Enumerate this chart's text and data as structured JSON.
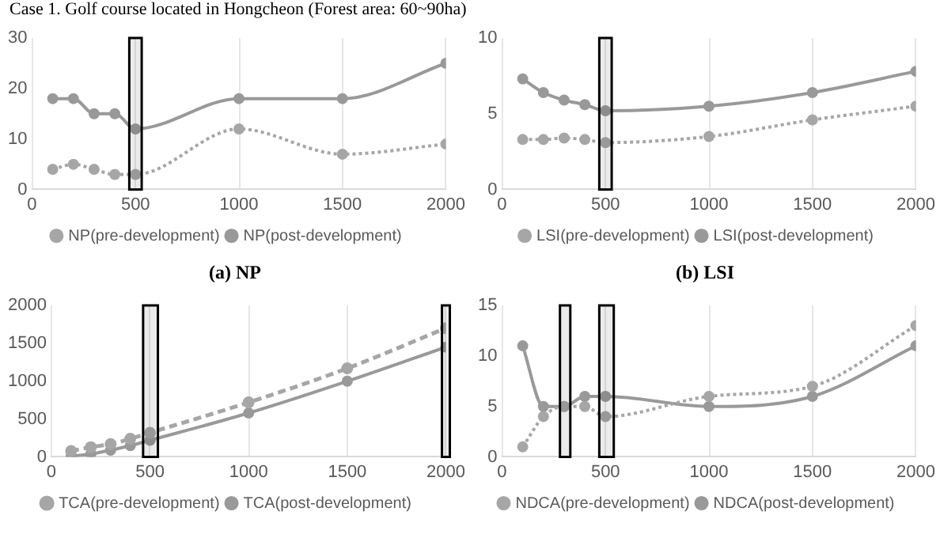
{
  "chart_data": [
    {
      "type": "line",
      "title": "Case 1. Golf course located in Hongcheon (Forest area: 60~90ha)",
      "annotations": [
        "(a) NP"
      ],
      "x": [
        100,
        200,
        300,
        400,
        500,
        1000,
        1500,
        2000
      ],
      "series": [
        {
          "name": "NP(pre-development)",
          "color": "#a6a6a6",
          "line_style": "dotted",
          "values": [
            4,
            5,
            4,
            3,
            3,
            12,
            7,
            9
          ]
        },
        {
          "name": "NP(post-development)",
          "color": "#999999",
          "line_style": "solid",
          "values": [
            18,
            18,
            15,
            15,
            12,
            18,
            18,
            25
          ]
        }
      ],
      "xlim": [
        0,
        2000
      ],
      "xticks": [
        0,
        500,
        1000,
        1500,
        2000
      ],
      "ylim": [
        0,
        30
      ],
      "yticks": [
        0,
        10,
        20,
        30
      ],
      "grid": "x",
      "legend": "bottom",
      "marker": "circle",
      "bands": [
        {
          "axis": "x",
          "from": 470,
          "to": 530,
          "color": "#000000"
        }
      ]
    },
    {
      "type": "line",
      "annotations": [
        "(b) LSI"
      ],
      "x": [
        100,
        200,
        300,
        400,
        500,
        1000,
        1500,
        2000
      ],
      "series": [
        {
          "name": "LSI(pre-development)",
          "color": "#a6a6a6",
          "line_style": "dotted",
          "values": [
            3.3,
            3.3,
            3.4,
            3.3,
            3.1,
            3.5,
            4.6,
            5.5
          ]
        },
        {
          "name": "LSI(post-development)",
          "color": "#999999",
          "line_style": "solid",
          "values": [
            7.3,
            6.4,
            5.9,
            5.6,
            5.2,
            5.5,
            6.4,
            7.8
          ]
        }
      ],
      "xlim": [
        0,
        2000
      ],
      "xticks": [
        0,
        500,
        1000,
        1500,
        2000
      ],
      "ylim": [
        0,
        10
      ],
      "yticks": [
        0,
        5,
        10
      ],
      "grid": "x",
      "legend": "bottom",
      "marker": "circle",
      "bands": [
        {
          "axis": "x",
          "from": 470,
          "to": 530,
          "color": "#000000"
        }
      ]
    },
    {
      "type": "line",
      "x": [
        100,
        200,
        300,
        400,
        500,
        1000,
        1500,
        2000
      ],
      "series": [
        {
          "name": "TCA(pre-development)",
          "color": "#a6a6a6",
          "line_style": "dashed",
          "values": [
            80,
            130,
            170,
            240,
            320,
            720,
            1170,
            1700
          ]
        },
        {
          "name": "TCA(post-development)",
          "color": "#999999",
          "line_style": "solid",
          "values": [
            10,
            40,
            90,
            150,
            220,
            580,
            1000,
            1450
          ]
        }
      ],
      "xlim": [
        0,
        2000
      ],
      "xticks": [
        0,
        500,
        1000,
        1500,
        2000
      ],
      "ylim": [
        0,
        2000
      ],
      "yticks": [
        0,
        500,
        1000,
        1500,
        2000
      ],
      "grid": "x",
      "legend": "bottom",
      "marker": "circle",
      "bands": [
        {
          "axis": "x",
          "from": 465,
          "to": 540,
          "color": "#000000"
        },
        {
          "axis": "x",
          "from": 1980,
          "to": 2020,
          "color": "#000000"
        }
      ]
    },
    {
      "type": "line",
      "x": [
        100,
        200,
        300,
        400,
        500,
        1000,
        1500,
        2000
      ],
      "series": [
        {
          "name": "NDCA(pre-development)",
          "color": "#a6a6a6",
          "line_style": "dotted",
          "values": [
            1,
            4,
            5,
            5,
            4,
            6,
            7,
            13
          ]
        },
        {
          "name": "NDCA(post-development)",
          "color": "#999999",
          "line_style": "solid",
          "values": [
            11,
            5,
            5,
            6,
            6,
            5,
            6,
            11
          ]
        }
      ],
      "xlim": [
        0,
        2000
      ],
      "xticks": [
        0,
        500,
        1000,
        1500,
        2000
      ],
      "ylim": [
        0,
        15
      ],
      "yticks": [
        0,
        5,
        10,
        15
      ],
      "grid": "x",
      "legend": "bottom",
      "marker": "circle",
      "bands": [
        {
          "axis": "x",
          "from": 280,
          "to": 330,
          "color": "#000000"
        },
        {
          "axis": "x",
          "from": 470,
          "to": 540,
          "color": "#000000"
        }
      ]
    }
  ]
}
